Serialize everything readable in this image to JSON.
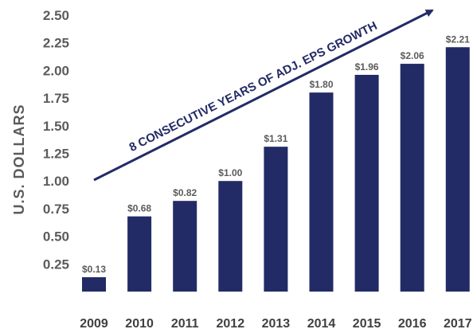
{
  "chart_data": {
    "type": "bar",
    "categories": [
      "2009",
      "2010",
      "2011",
      "2012",
      "2013",
      "2014",
      "2015",
      "2016",
      "2017"
    ],
    "values": [
      0.13,
      0.68,
      0.82,
      1.0,
      1.31,
      1.8,
      1.96,
      2.06,
      2.21
    ],
    "data_labels": [
      "$0.13",
      "$0.68",
      "$0.82",
      "$1.00",
      "$1.31",
      "$1.80",
      "$1.96",
      "$2.06",
      "$2.21"
    ],
    "y_ticks": [
      "0.25",
      "0.50",
      "0.75",
      "1.00",
      "1.25",
      "1.50",
      "1.75",
      "2.00",
      "2.25",
      "2.50"
    ],
    "y_tick_values": [
      0.25,
      0.5,
      0.75,
      1.0,
      1.25,
      1.5,
      1.75,
      2.0,
      2.25,
      2.5
    ],
    "ylabel": "U.S. DOLLARS",
    "xlabel": "",
    "ylim": [
      0,
      2.5
    ],
    "grid": false,
    "legend": "none",
    "annotation": "8 CONSECUTIVE YEARS OF ADJ. EPS GROWTH",
    "bar_color": "#232b66",
    "arrow_color": "#232b66"
  }
}
